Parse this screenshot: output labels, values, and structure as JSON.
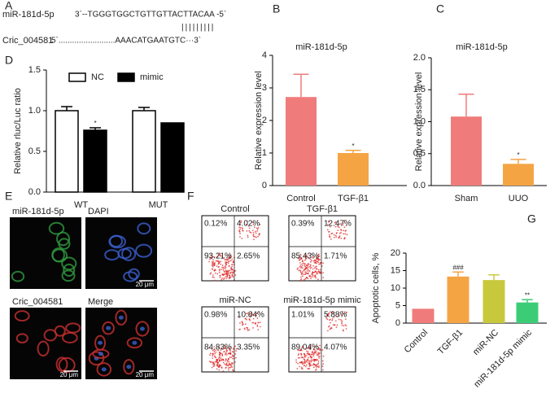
{
  "panel_labels": [
    "A",
    "B",
    "C",
    "D",
    "E",
    "F",
    "G"
  ],
  "panel_a": {
    "mirna_name": "miR-181d-5p",
    "mirna_seq": "3`--TGGGTGGCTGTTGTTACTTACAA -5`",
    "pairing": "|||||||||",
    "circ_name": "Cric_004581",
    "circ_seq": "5`.........................AAACATGAATGTC···3`"
  },
  "chart_data": [
    {
      "type": "bar",
      "title": "miR-181d-5p",
      "y_label": "Relative expression level",
      "categories": [
        "Control",
        "TGF-β1"
      ],
      "series": [
        {
          "values": [
            2.72,
            1.0
          ],
          "errors": [
            0.7,
            0.08
          ],
          "colors": [
            "#f07b7b",
            "#f5a444"
          ],
          "annotations": [
            null,
            "*"
          ]
        }
      ],
      "ylim": [
        0,
        4
      ],
      "yticks": [
        0,
        1,
        2,
        3,
        4
      ]
    },
    {
      "type": "bar",
      "title": "miR-181d-5p",
      "y_label": "Relative expression level",
      "categories": [
        "Sham",
        "UUO"
      ],
      "series": [
        {
          "values": [
            1.08,
            0.34
          ],
          "errors": [
            0.35,
            0.07
          ],
          "colors": [
            "#f07b7b",
            "#f5a444"
          ],
          "annotations": [
            null,
            "*"
          ]
        }
      ],
      "ylim": [
        0,
        2
      ],
      "yticks": [
        {
          "value": 0,
          "label": "0.0"
        },
        0.5,
        {
          "value": 1,
          "label": "1.0"
        },
        1.5,
        {
          "value": 2,
          "label": "2.0"
        }
      ]
    },
    {
      "type": "bar",
      "y_label": "Relative rluc/Luc ratio",
      "categories": [
        "WT",
        "MUT"
      ],
      "series": [
        {
          "name": "NC",
          "color": "#ffffff",
          "values": [
            1.0,
            1.0
          ],
          "errors": [
            0.05,
            0.04
          ]
        },
        {
          "name": "mimic",
          "color": "#000000",
          "values": [
            0.76,
            0.85
          ],
          "errors": [
            0.03,
            null
          ],
          "annotations": [
            "*",
            null
          ]
        }
      ],
      "ylim": [
        0,
        1.5
      ],
      "yticks": [
        {
          "value": 0,
          "label": "0.0"
        },
        0.5,
        {
          "value": 1,
          "label": "1.0"
        },
        1.5
      ],
      "legend": "top"
    },
    {
      "type": "bar",
      "y_label": "Apoptotic cells, %",
      "categories": [
        "Control",
        "TGF-β1",
        "miR-NC",
        "miR-181d-5p mimic"
      ],
      "series": [
        {
          "values": [
            4.1,
            13.3,
            12.3,
            5.9
          ],
          "errors": [
            null,
            1.3,
            1.5,
            0.8
          ],
          "colors": [
            "#f07b7b",
            "#f5a444",
            "#c8c83c",
            "#3ccc78"
          ],
          "annotations": [
            null,
            "###",
            null,
            "**"
          ]
        }
      ],
      "ylim": [
        0,
        20
      ],
      "yticks": [
        0,
        5,
        10,
        15,
        20
      ],
      "x_labels_rotated": true
    }
  ],
  "panel_e": {
    "images": [
      {
        "label": "miR-181d-5p"
      },
      {
        "label": "DAPI",
        "scale": "20 μm"
      },
      {
        "label": "Cric_004581",
        "scale": "20 μm"
      },
      {
        "label": "Merge",
        "scale": "20 μm"
      }
    ]
  },
  "panel_f": {
    "plots": [
      {
        "title": "Control",
        "quadrants": [
          "0.12%",
          "4.02%",
          "93.21%",
          "2.65%"
        ]
      },
      {
        "title": "TGF-β1",
        "quadrants": [
          "0.39%",
          "12.47%",
          "85.43%",
          "1.71%"
        ]
      },
      {
        "title": "miR-NC",
        "quadrants": [
          "0.98%",
          "10.84%",
          "84.83%",
          "3.35%"
        ]
      },
      {
        "title": "miR-181d-5p mimic",
        "quadrants": [
          "1.01%",
          "5.88%",
          "89.04%",
          "4.07%"
        ]
      }
    ]
  }
}
